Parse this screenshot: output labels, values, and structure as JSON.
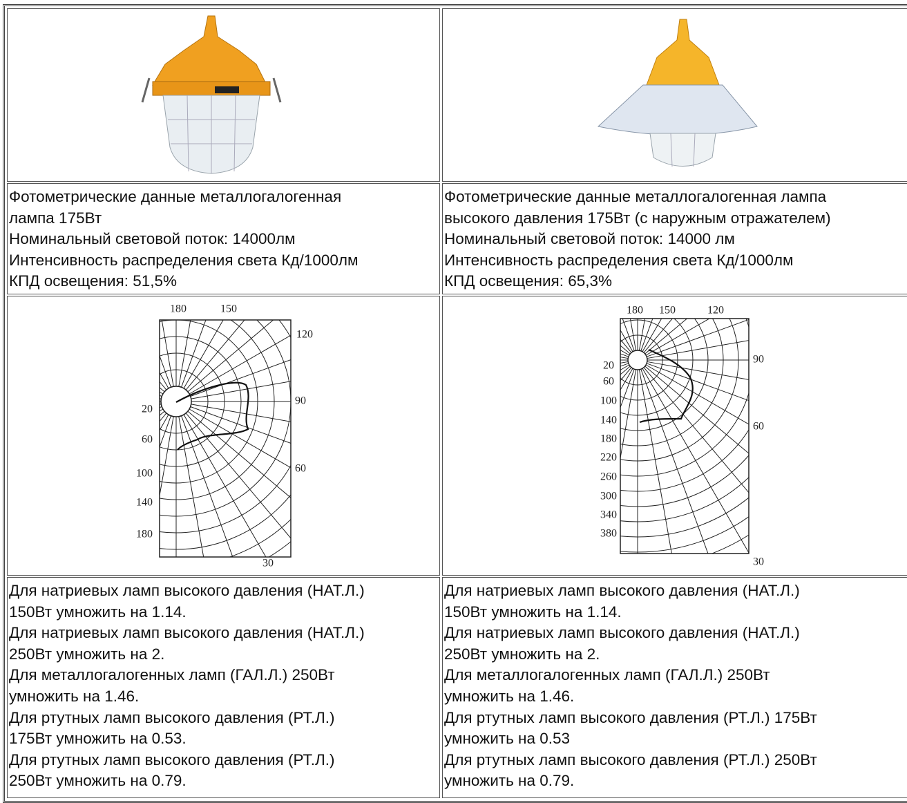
{
  "photometry": [
    {
      "lines": [
        "Фотометрические данные металлогалогенная",
        "лампа 175Вт",
        "Номинальный световой поток: 14000лм",
        "Интенсивность распределения света Кд/1000лм",
        "КПД освещения: 51,5%"
      ]
    },
    {
      "lines": [
        "Фотометрические данные металлогалогенная лампа",
        "высокого давления 175Вт (с наружным отражателем)",
        "Номинальный световой поток: 14000 лм",
        "Интенсивность распределения света Кд/1000лм",
        "КПД освещения: 65,3%"
      ]
    }
  ],
  "diagrams": [
    {
      "top_labels": [
        180,
        150
      ],
      "right_labels": [
        120,
        90,
        60
      ],
      "bottom_labels": [
        30
      ],
      "left_labels": [
        20,
        60,
        100,
        140,
        180
      ]
    },
    {
      "top_labels": [
        180,
        150,
        120
      ],
      "right_labels": [
        90,
        60
      ],
      "bottom_labels": [
        30
      ],
      "left_labels": [
        20,
        60,
        100,
        140,
        180,
        220,
        260,
        300,
        340,
        380
      ]
    }
  ],
  "notes": [
    {
      "lines": [
        "Для натриевых ламп высокого давления (НАТ.Л.)",
        "150Вт умножить на 1.14.",
        "Для натриевых ламп высокого давления (НАТ.Л.)",
        "250Вт умножить на 2.",
        "Для металлогалогенных ламп (ГАЛ.Л.) 250Вт",
        "умножить на 1.46.",
        "Для ртутных ламп высокого давления (РТ.Л.)",
        "175Вт умножить на 0.53.",
        "Для ртутных ламп высокого давления (РТ.Л.)",
        "250Вт умножить на 0.79."
      ]
    },
    {
      "lines": [
        "Для натриевых ламп высокого давления (НАТ.Л.)",
        "150Вт умножить на 1.14.",
        "Для натриевых ламп высокого давления (НАТ.Л.)",
        "250Вт умножить на 2.",
        "Для металлогалогенных ламп (ГАЛ.Л.) 250Вт",
        "умножить на 1.46.",
        "Для ртутных ламп высокого давления (РТ.Л.) 175Вт",
        "умножить на 0.53",
        "Для ртутных ламп высокого давления (РТ.Л.) 250Вт",
        "умножить на 0.79."
      ]
    }
  ]
}
